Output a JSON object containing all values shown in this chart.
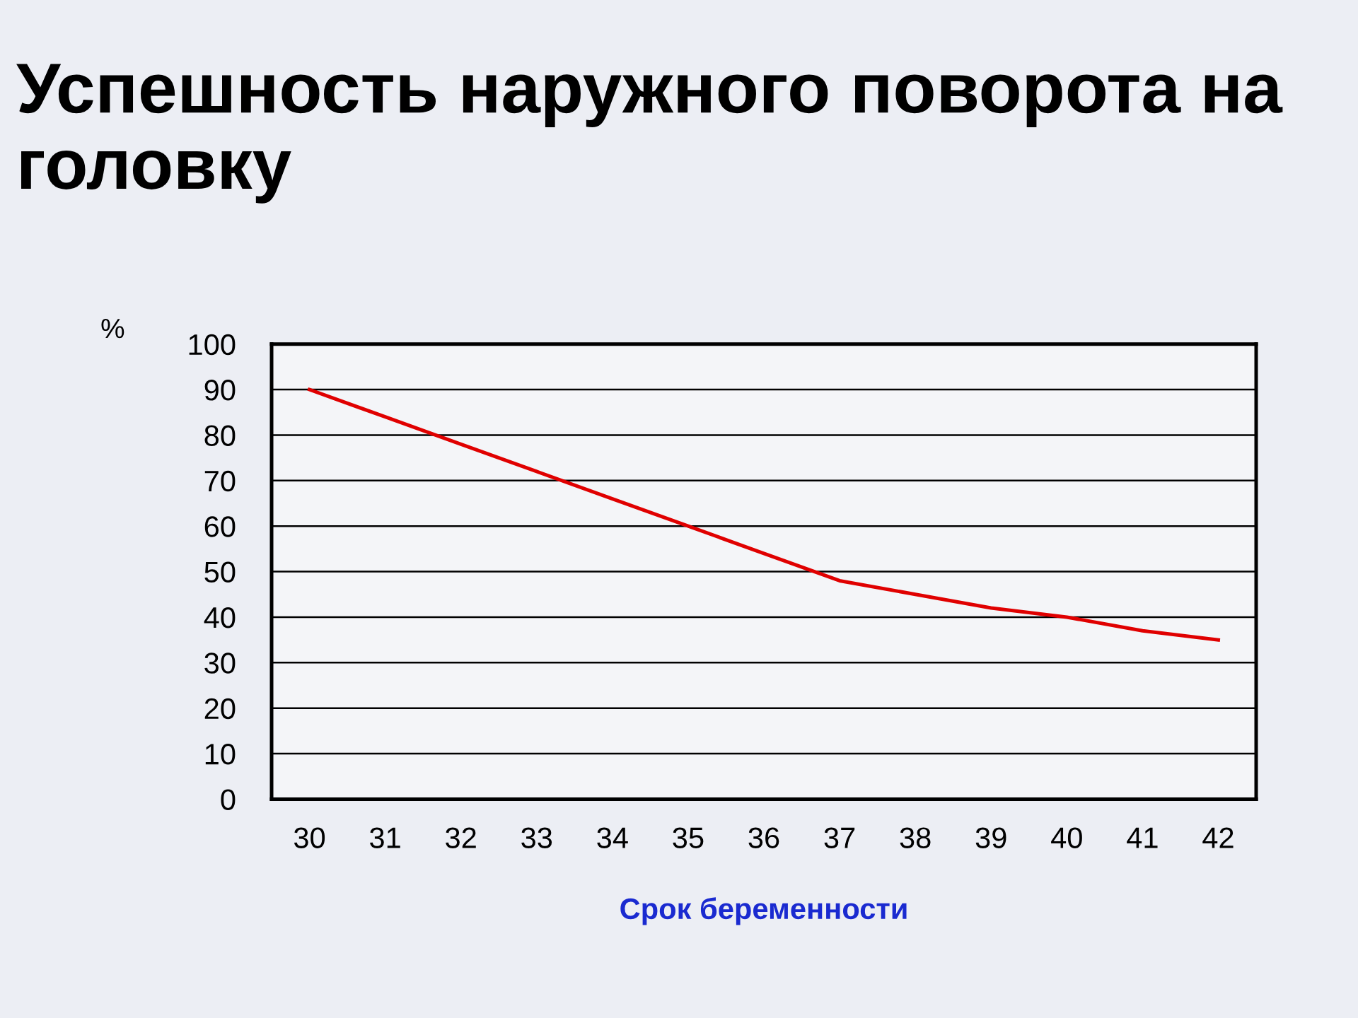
{
  "chart_data": {
    "type": "line",
    "title": "Успешность наружного поворота на головку",
    "ylabel": "%",
    "xlabel": "Срок беременности",
    "categories": [
      "30",
      "31",
      "32",
      "33",
      "34",
      "35",
      "36",
      "37",
      "38",
      "39",
      "40",
      "41",
      "42"
    ],
    "series": [
      {
        "color": "#e00000",
        "values": [
          90,
          84,
          78,
          72,
          66,
          60,
          54,
          48,
          45,
          42,
          40,
          37,
          35
        ]
      }
    ],
    "ylim": [
      0,
      100
    ],
    "yticks": [
      0,
      10,
      20,
      30,
      40,
      50,
      60,
      70,
      80,
      90,
      100
    ],
    "grid": "y",
    "legend": false,
    "marker": "none",
    "line_style": "solid"
  }
}
